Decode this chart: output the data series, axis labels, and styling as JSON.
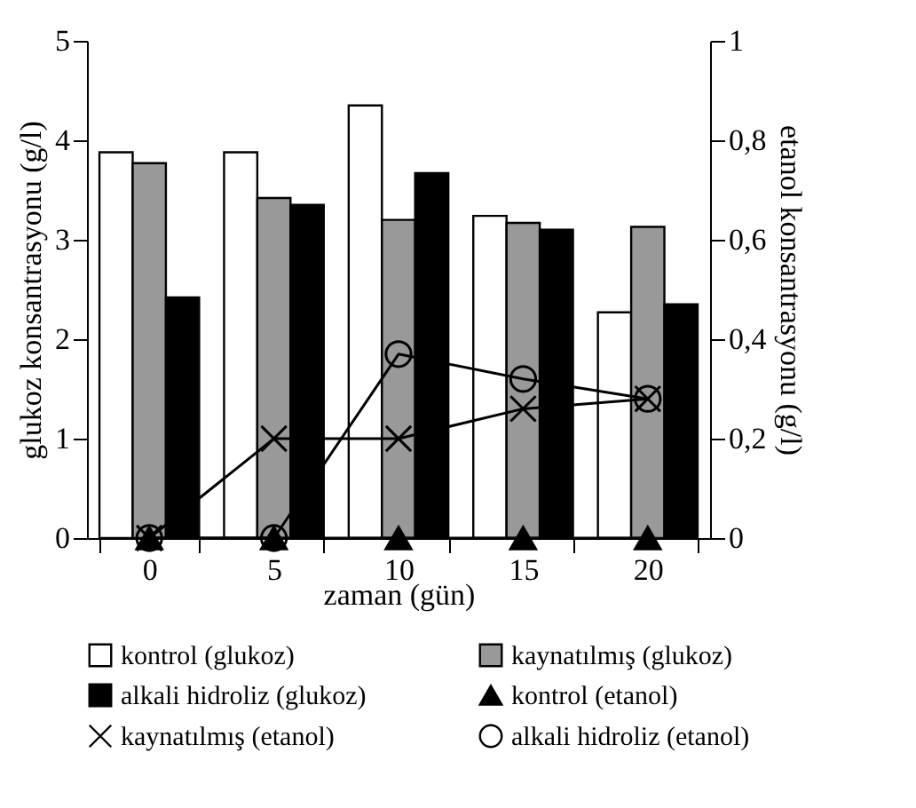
{
  "chart_data": {
    "type": "bar",
    "xlabel": "zaman (gün)",
    "ylabel": "glukoz konsantrasyonu (g/l)",
    "y2label": "etanol konsantrasyonu (g/l)",
    "categories": [
      "0",
      "5",
      "10",
      "15",
      "20"
    ],
    "ylim": [
      0,
      5
    ],
    "yticks": [
      0,
      1,
      2,
      3,
      4,
      5
    ],
    "y2lim": [
      0,
      1
    ],
    "y2ticks": [
      0,
      {
        "value": 0.2,
        "label": "0,2"
      },
      {
        "value": 0.4,
        "label": "0,4"
      },
      {
        "value": 0.6,
        "label": "0,6"
      },
      {
        "value": 0.8,
        "label": "0,8"
      },
      1
    ],
    "legend": "bottom",
    "grid": false,
    "series": [
      {
        "name": "kontrol (glukoz)",
        "color": "#ffffff",
        "values": [
          3.88,
          3.88,
          4.35,
          3.24,
          2.27
        ]
      },
      {
        "name": "kaynatılmış (glukoz)",
        "color": "#999999",
        "values": [
          3.77,
          3.42,
          3.2,
          3.17,
          3.13
        ]
      },
      {
        "name": "alkali hidroliz (glukoz)",
        "color": "#000000",
        "values": [
          2.42,
          3.35,
          3.67,
          3.1,
          2.35
        ]
      },
      {
        "name": "kontrol (etanol)",
        "type": "line",
        "axis": "y2",
        "color": "#000000",
        "marker": "triangle",
        "values": [
          0,
          0,
          0,
          0,
          0
        ]
      },
      {
        "name": "kaynatılmış (etanol)",
        "type": "line",
        "axis": "y2",
        "color": "#000000",
        "marker": "cross",
        "values": [
          0,
          0.2,
          0.2,
          0.26,
          0.28
        ]
      },
      {
        "name": "alkali hidroliz (etanol)",
        "type": "line",
        "axis": "y2",
        "color": "#000000",
        "marker": "circle",
        "values": [
          0,
          0,
          0.37,
          0.32,
          0.28
        ]
      }
    ]
  }
}
